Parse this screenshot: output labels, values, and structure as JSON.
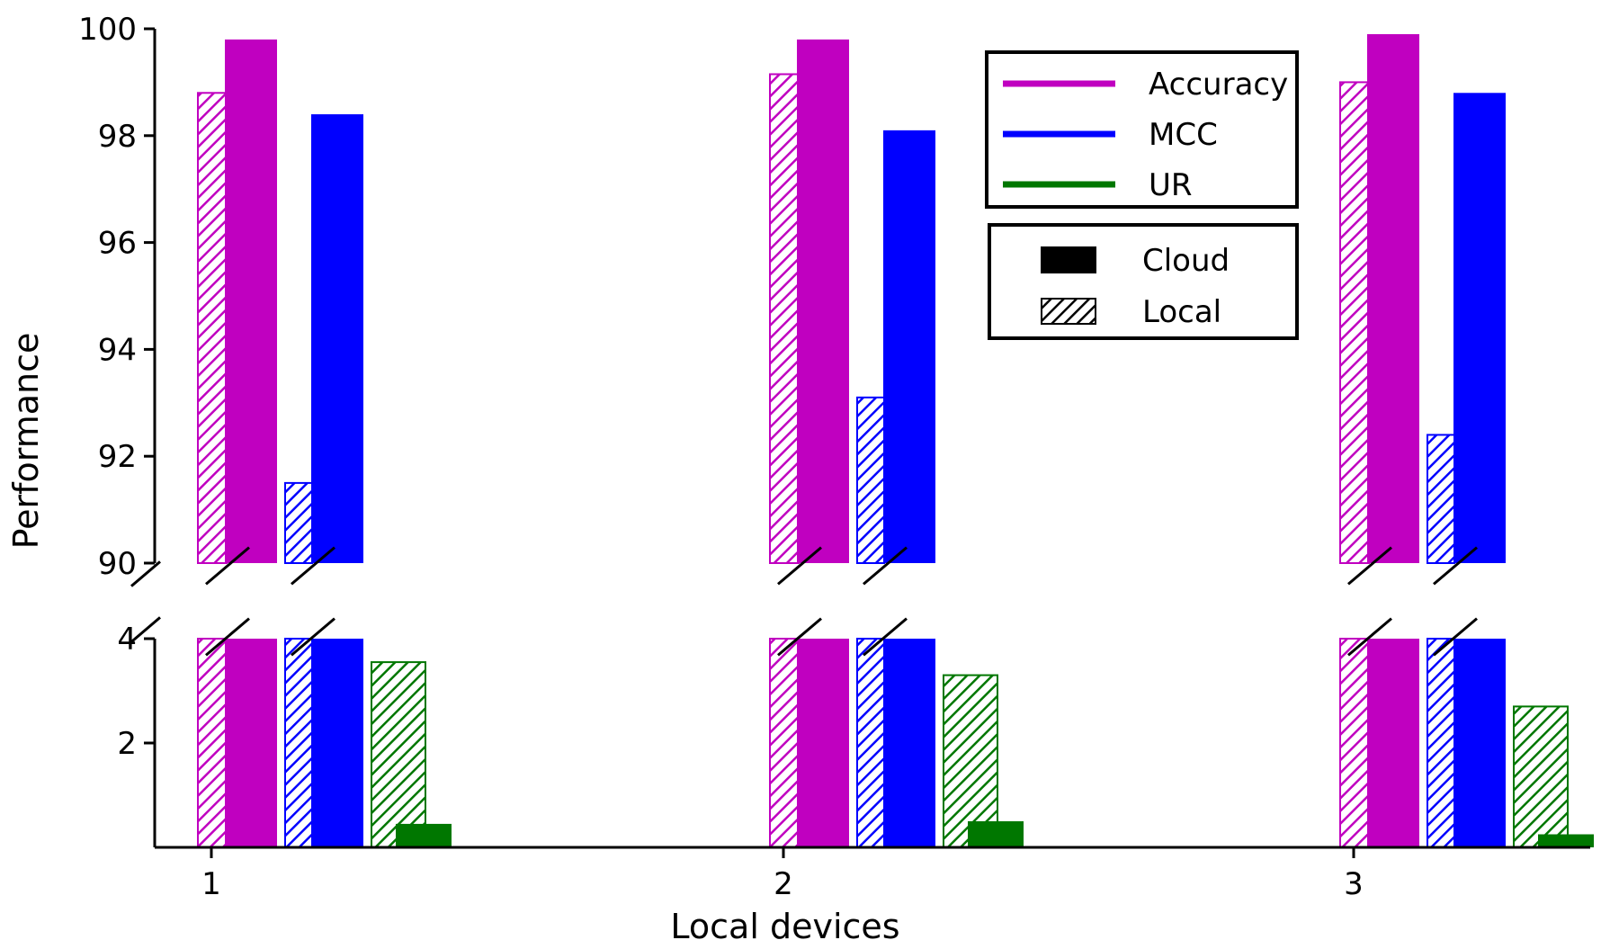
{
  "chart_data": {
    "type": "bar",
    "xlabel": "Local devices",
    "ylabel": "Performance",
    "categories": [
      "1",
      "2",
      "3"
    ],
    "broken_axis": true,
    "upper_ylim": [
      90,
      100
    ],
    "upper_yticks": [
      "90",
      "92",
      "94",
      "96",
      "98",
      "100"
    ],
    "lower_ylim": [
      0,
      4
    ],
    "lower_yticks": [
      "2",
      "4"
    ],
    "series": [
      {
        "metric": "Accuracy",
        "setting": "Local",
        "color": "#c000c0",
        "hatched": true,
        "values": [
          98.8,
          99.15,
          99.0
        ]
      },
      {
        "metric": "Accuracy",
        "setting": "Cloud",
        "color": "#c000c0",
        "hatched": false,
        "values": [
          99.8,
          99.8,
          99.9
        ]
      },
      {
        "metric": "MCC",
        "setting": "Local",
        "color": "#0000ff",
        "hatched": true,
        "values": [
          91.5,
          93.1,
          92.4
        ]
      },
      {
        "metric": "MCC",
        "setting": "Cloud",
        "color": "#0000ff",
        "hatched": false,
        "values": [
          98.4,
          98.1,
          98.8
        ]
      },
      {
        "metric": "UR",
        "setting": "Local",
        "color": "#007700",
        "hatched": true,
        "values": [
          3.55,
          3.3,
          2.7
        ]
      },
      {
        "metric": "UR",
        "setting": "Cloud",
        "color": "#007700",
        "hatched": false,
        "values": [
          0.45,
          0.5,
          0.25
        ]
      }
    ],
    "legend_metrics": [
      {
        "label": "Accuracy",
        "color": "#c000c0"
      },
      {
        "label": "MCC",
        "color": "#0000ff"
      },
      {
        "label": "UR",
        "color": "#007700"
      }
    ],
    "legend_settings": [
      {
        "label": "Cloud",
        "hatched": false
      },
      {
        "label": "Local",
        "hatched": true
      }
    ],
    "legend_position": "top-right"
  }
}
